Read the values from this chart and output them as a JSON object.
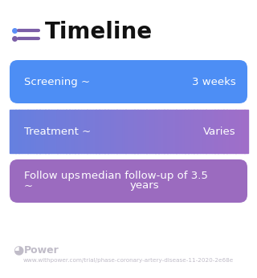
{
  "title": "Timeline",
  "title_fontsize": 20,
  "title_color": "#111111",
  "icon_color": "#7b5ea7",
  "icon_dot_color": "#5b8ff7",
  "bg_color": "#ffffff",
  "rows": [
    {
      "left_text": "Screening ~",
      "right_text": "3 weeks",
      "color_left": "#4d8ef5",
      "color_right": "#4d8ef5",
      "gradient": false
    },
    {
      "left_text": "Treatment ~",
      "right_text": "Varies",
      "color_left": "#6580e0",
      "color_right": "#a06ec8",
      "gradient": true
    },
    {
      "left_text": "Follow ups",
      "left_text2": "~",
      "right_text": "median follow-up of 3.5",
      "right_text2": "years",
      "color_left": "#9b6bbf",
      "color_right": "#9b6bbf",
      "gradient": false
    }
  ],
  "footer_logo_color": "#c0bcc8",
  "footer_text": "www.withpower.com/trial/phase-coronary-artery-disease-11-2020-2e68e",
  "footer_fontsize": 5.2,
  "text_color": "#ffffff",
  "row_text_fontsize": 9.5
}
